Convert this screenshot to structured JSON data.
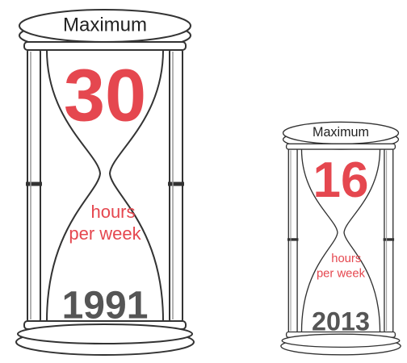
{
  "hourglasses": [
    {
      "label": "Maximum",
      "number": 30,
      "unit_line1": "hours",
      "unit_line2": "per week",
      "year": 1991
    },
    {
      "label": "Maximum",
      "number": 16,
      "unit_line1": "hours",
      "unit_line2": "per week",
      "year": 2013
    }
  ]
}
